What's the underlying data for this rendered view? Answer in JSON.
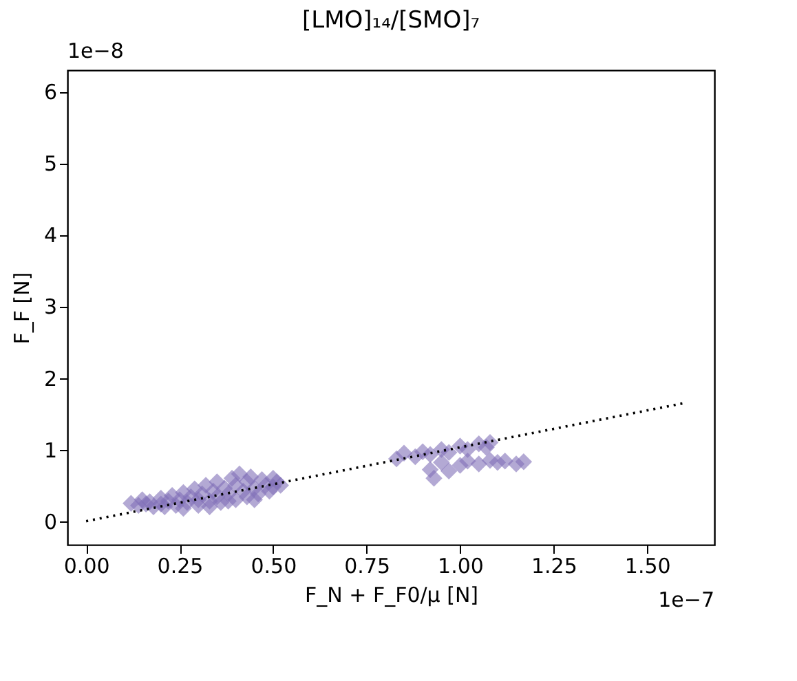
{
  "chart_data": {
    "type": "scatter",
    "title": "[LMO]₁₄/[SMO]₇",
    "xlabel": "F_N + F_F0/μ [N]",
    "ylabel": "F_F [N]",
    "xlim": [
      -0.05,
      1.68
    ],
    "xticks": [
      {
        "value": 0,
        "label": "0.00"
      },
      0.25,
      {
        "value": 0.5,
        "label": "0.50"
      },
      0.75,
      {
        "value": 1,
        "label": "1.00"
      },
      1.25,
      {
        "value": 1.5,
        "label": "1.50"
      }
    ],
    "ylim": [
      -0.33,
      6.3
    ],
    "yticks": [
      0,
      1,
      2,
      3,
      4,
      5,
      6
    ],
    "grid": false,
    "annotations": [
      "1e−8",
      "1e−7"
    ],
    "series": [
      {
        "color": "#8070b8",
        "marker": "diamond",
        "x": [
          0.12,
          0.14,
          0.15,
          0.17,
          0.18,
          0.2,
          0.2,
          0.22,
          0.23,
          0.24,
          0.25,
          0.26,
          0.27,
          0.28,
          0.29,
          0.3,
          0.3,
          0.31,
          0.32,
          0.33,
          0.34,
          0.35,
          0.35,
          0.36,
          0.37,
          0.38,
          0.39,
          0.4,
          0.4,
          0.41,
          0.42,
          0.43,
          0.43,
          0.44,
          0.45,
          0.46,
          0.47,
          0.48,
          0.49,
          0.5,
          0.5,
          0.51,
          0.52,
          0.16,
          0.21,
          0.26,
          0.33,
          0.38,
          0.45,
          0.83,
          0.85,
          0.88,
          0.9,
          0.92,
          0.95,
          0.97,
          1.0,
          1.02,
          1.05,
          1.07,
          1.08,
          0.92,
          0.93,
          0.95,
          0.97,
          1.0,
          1.02,
          1.05,
          1.08,
          1.1,
          1.12,
          1.15,
          1.17
        ],
        "values": [
          0.25,
          0.22,
          0.3,
          0.27,
          0.2,
          0.32,
          0.24,
          0.28,
          0.36,
          0.22,
          0.3,
          0.4,
          0.26,
          0.34,
          0.45,
          0.3,
          0.22,
          0.38,
          0.5,
          0.28,
          0.42,
          0.34,
          0.55,
          0.26,
          0.46,
          0.38,
          0.6,
          0.3,
          0.5,
          0.66,
          0.42,
          0.55,
          0.34,
          0.62,
          0.46,
          0.38,
          0.58,
          0.5,
          0.42,
          0.6,
          0.48,
          0.55,
          0.5,
          0.24,
          0.2,
          0.18,
          0.2,
          0.28,
          0.3,
          0.87,
          0.95,
          0.9,
          0.97,
          0.93,
          1.0,
          0.96,
          1.05,
          1.0,
          1.08,
          1.03,
          1.1,
          0.72,
          0.6,
          0.82,
          0.7,
          0.78,
          0.84,
          0.8,
          0.85,
          0.82,
          0.84,
          0.8,
          0.83
        ]
      },
      {
        "type": "line",
        "color": "#000000",
        "line_style": "dotted",
        "x": [
          0,
          1.6
        ],
        "values": [
          0,
          1.65
        ]
      }
    ]
  }
}
